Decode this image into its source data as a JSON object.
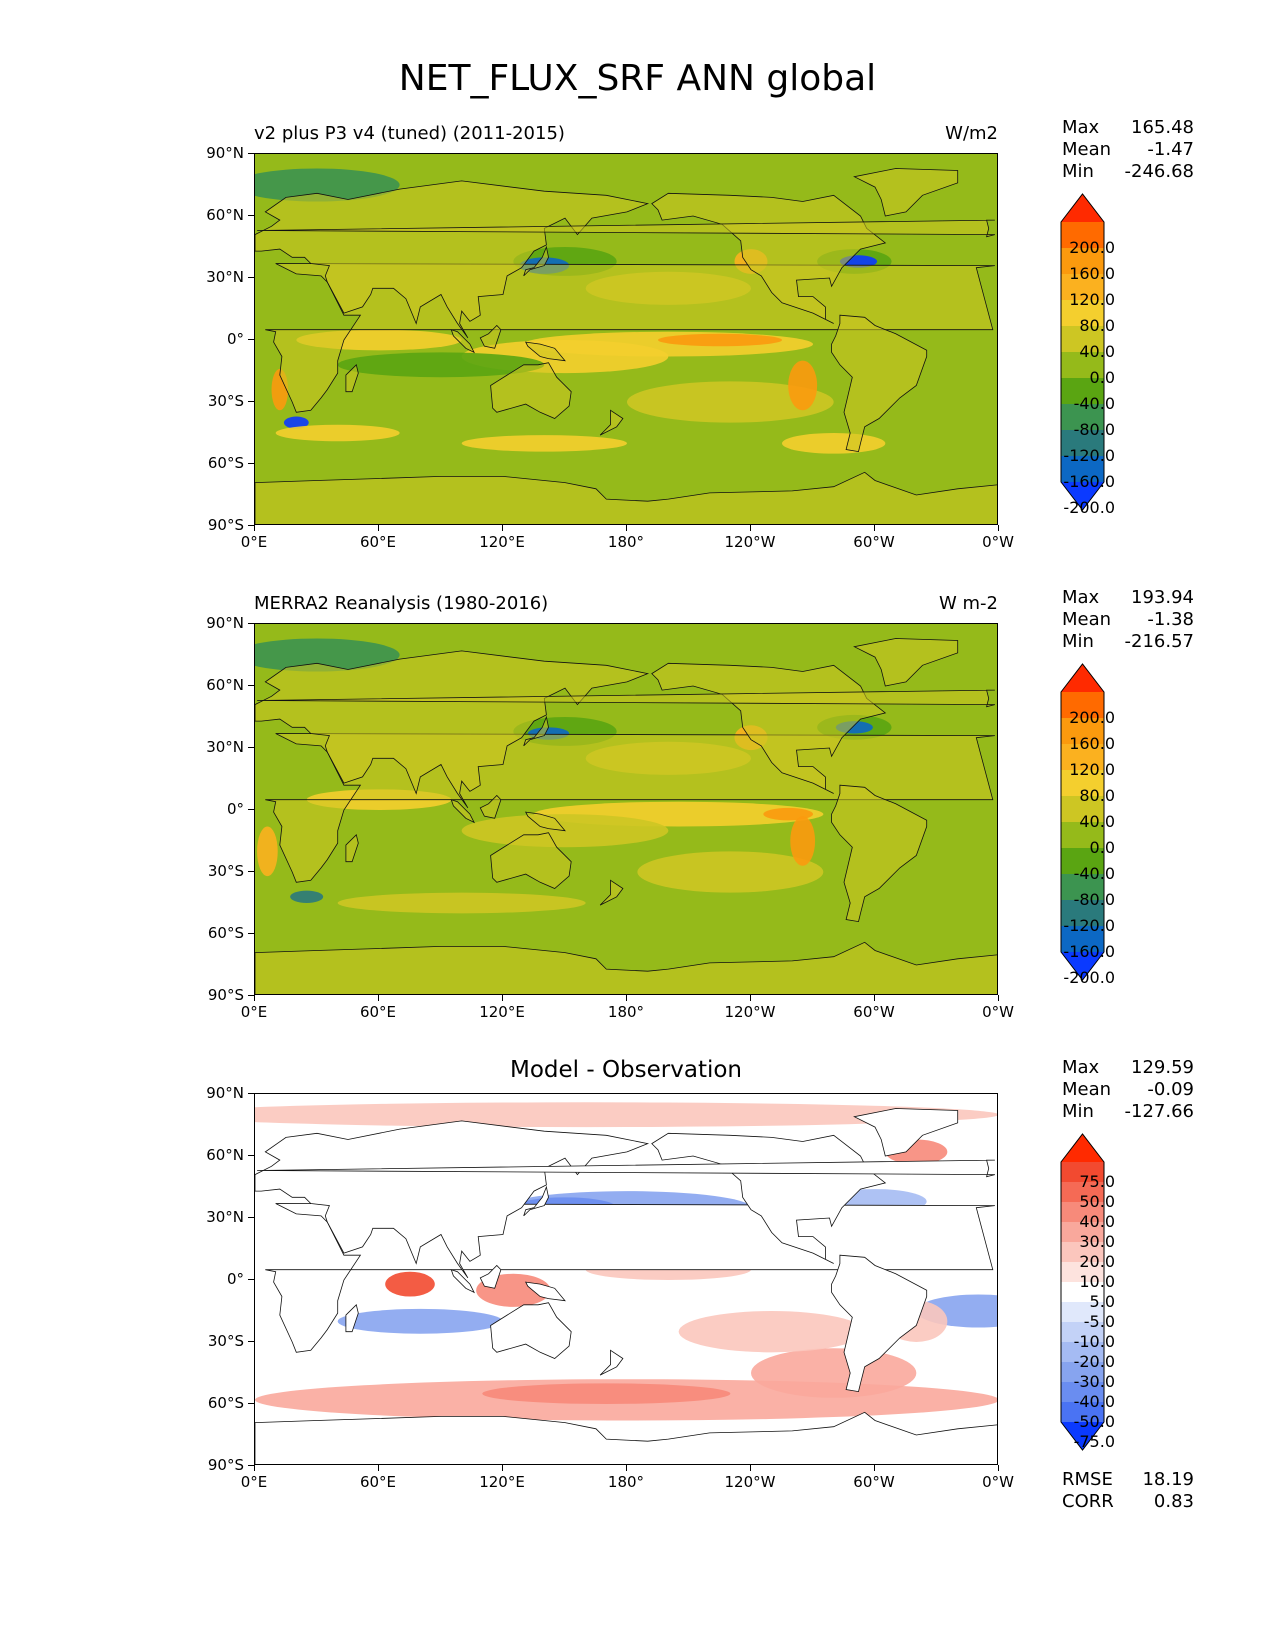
{
  "title": "NET_FLUX_SRF ANN global",
  "map_ticks": {
    "lat": [
      "90°N",
      "60°N",
      "30°N",
      "0°",
      "30°S",
      "60°S",
      "90°S"
    ],
    "lon": [
      "0°E",
      "60°E",
      "120°E",
      "180°",
      "120°W",
      "60°W",
      "0°W"
    ]
  },
  "panels": [
    {
      "title_left": "v2 plus P3 v4 (tuned) (2011-2015)",
      "title_center": "",
      "units": "W/m2",
      "stats": {
        "max_label": "Max",
        "max": "165.48",
        "mean_label": "Mean",
        "mean": "-1.47",
        "min_label": "Min",
        "min": "-246.68"
      },
      "colorbar": {
        "labels": [
          "200.0",
          "160.0",
          "120.0",
          "80.0",
          "40.0",
          "0.0",
          "-40.0",
          "-80.0",
          "-120.0",
          "-160.0",
          "-200.0"
        ],
        "colors": [
          "#ff2a00",
          "#ff6a00",
          "#fb9a0e",
          "#fbb11f",
          "#f4cf2e",
          "#cdc623",
          "#95ba1a",
          "#5aa512",
          "#3c9450",
          "#2a7a7c",
          "#0c68c4",
          "#0b3aff"
        ]
      }
    },
    {
      "title_left": "MERRA2 Reanalysis (1980-2016)",
      "title_center": "",
      "units": "W m-2",
      "stats": {
        "max_label": "Max",
        "max": "193.94",
        "mean_label": "Mean",
        "mean": "-1.38",
        "min_label": "Min",
        "min": "-216.57"
      },
      "colorbar": {
        "labels": [
          "200.0",
          "160.0",
          "120.0",
          "80.0",
          "40.0",
          "0.0",
          "-40.0",
          "-80.0",
          "-120.0",
          "-160.0",
          "-200.0"
        ],
        "colors": [
          "#ff2a00",
          "#ff6a00",
          "#fb9a0e",
          "#fbb11f",
          "#f4cf2e",
          "#cdc623",
          "#95ba1a",
          "#5aa512",
          "#3c9450",
          "#2a7a7c",
          "#0c68c4",
          "#0b3aff"
        ]
      }
    },
    {
      "title_left": "",
      "title_center": "Model - Observation",
      "units": "",
      "stats": {
        "max_label": "Max",
        "max": "129.59",
        "mean_label": "Mean",
        "mean": "-0.09",
        "min_label": "Min",
        "min": "-127.66"
      },
      "colorbar": {
        "labels": [
          "75.0",
          "50.0",
          "40.0",
          "30.0",
          "20.0",
          "10.0",
          "5.0",
          "-5.0",
          "-10.0",
          "-20.0",
          "-30.0",
          "-40.0",
          "-50.0",
          "-75.0"
        ],
        "colors": [
          "#ff2a00",
          "#f24a30",
          "#f56a55",
          "#f78a7a",
          "#f9a89c",
          "#fbc6bd",
          "#fde3de",
          "#ffffff",
          "#e0e8fb",
          "#c3d2f7",
          "#a5bbf3",
          "#87a4ef",
          "#6a8df0",
          "#4a73f3",
          "#0b3aff"
        ]
      },
      "metrics": {
        "rmse_label": "RMSE",
        "rmse": "18.19",
        "corr_label": "CORR",
        "corr": "0.83"
      }
    }
  ]
}
